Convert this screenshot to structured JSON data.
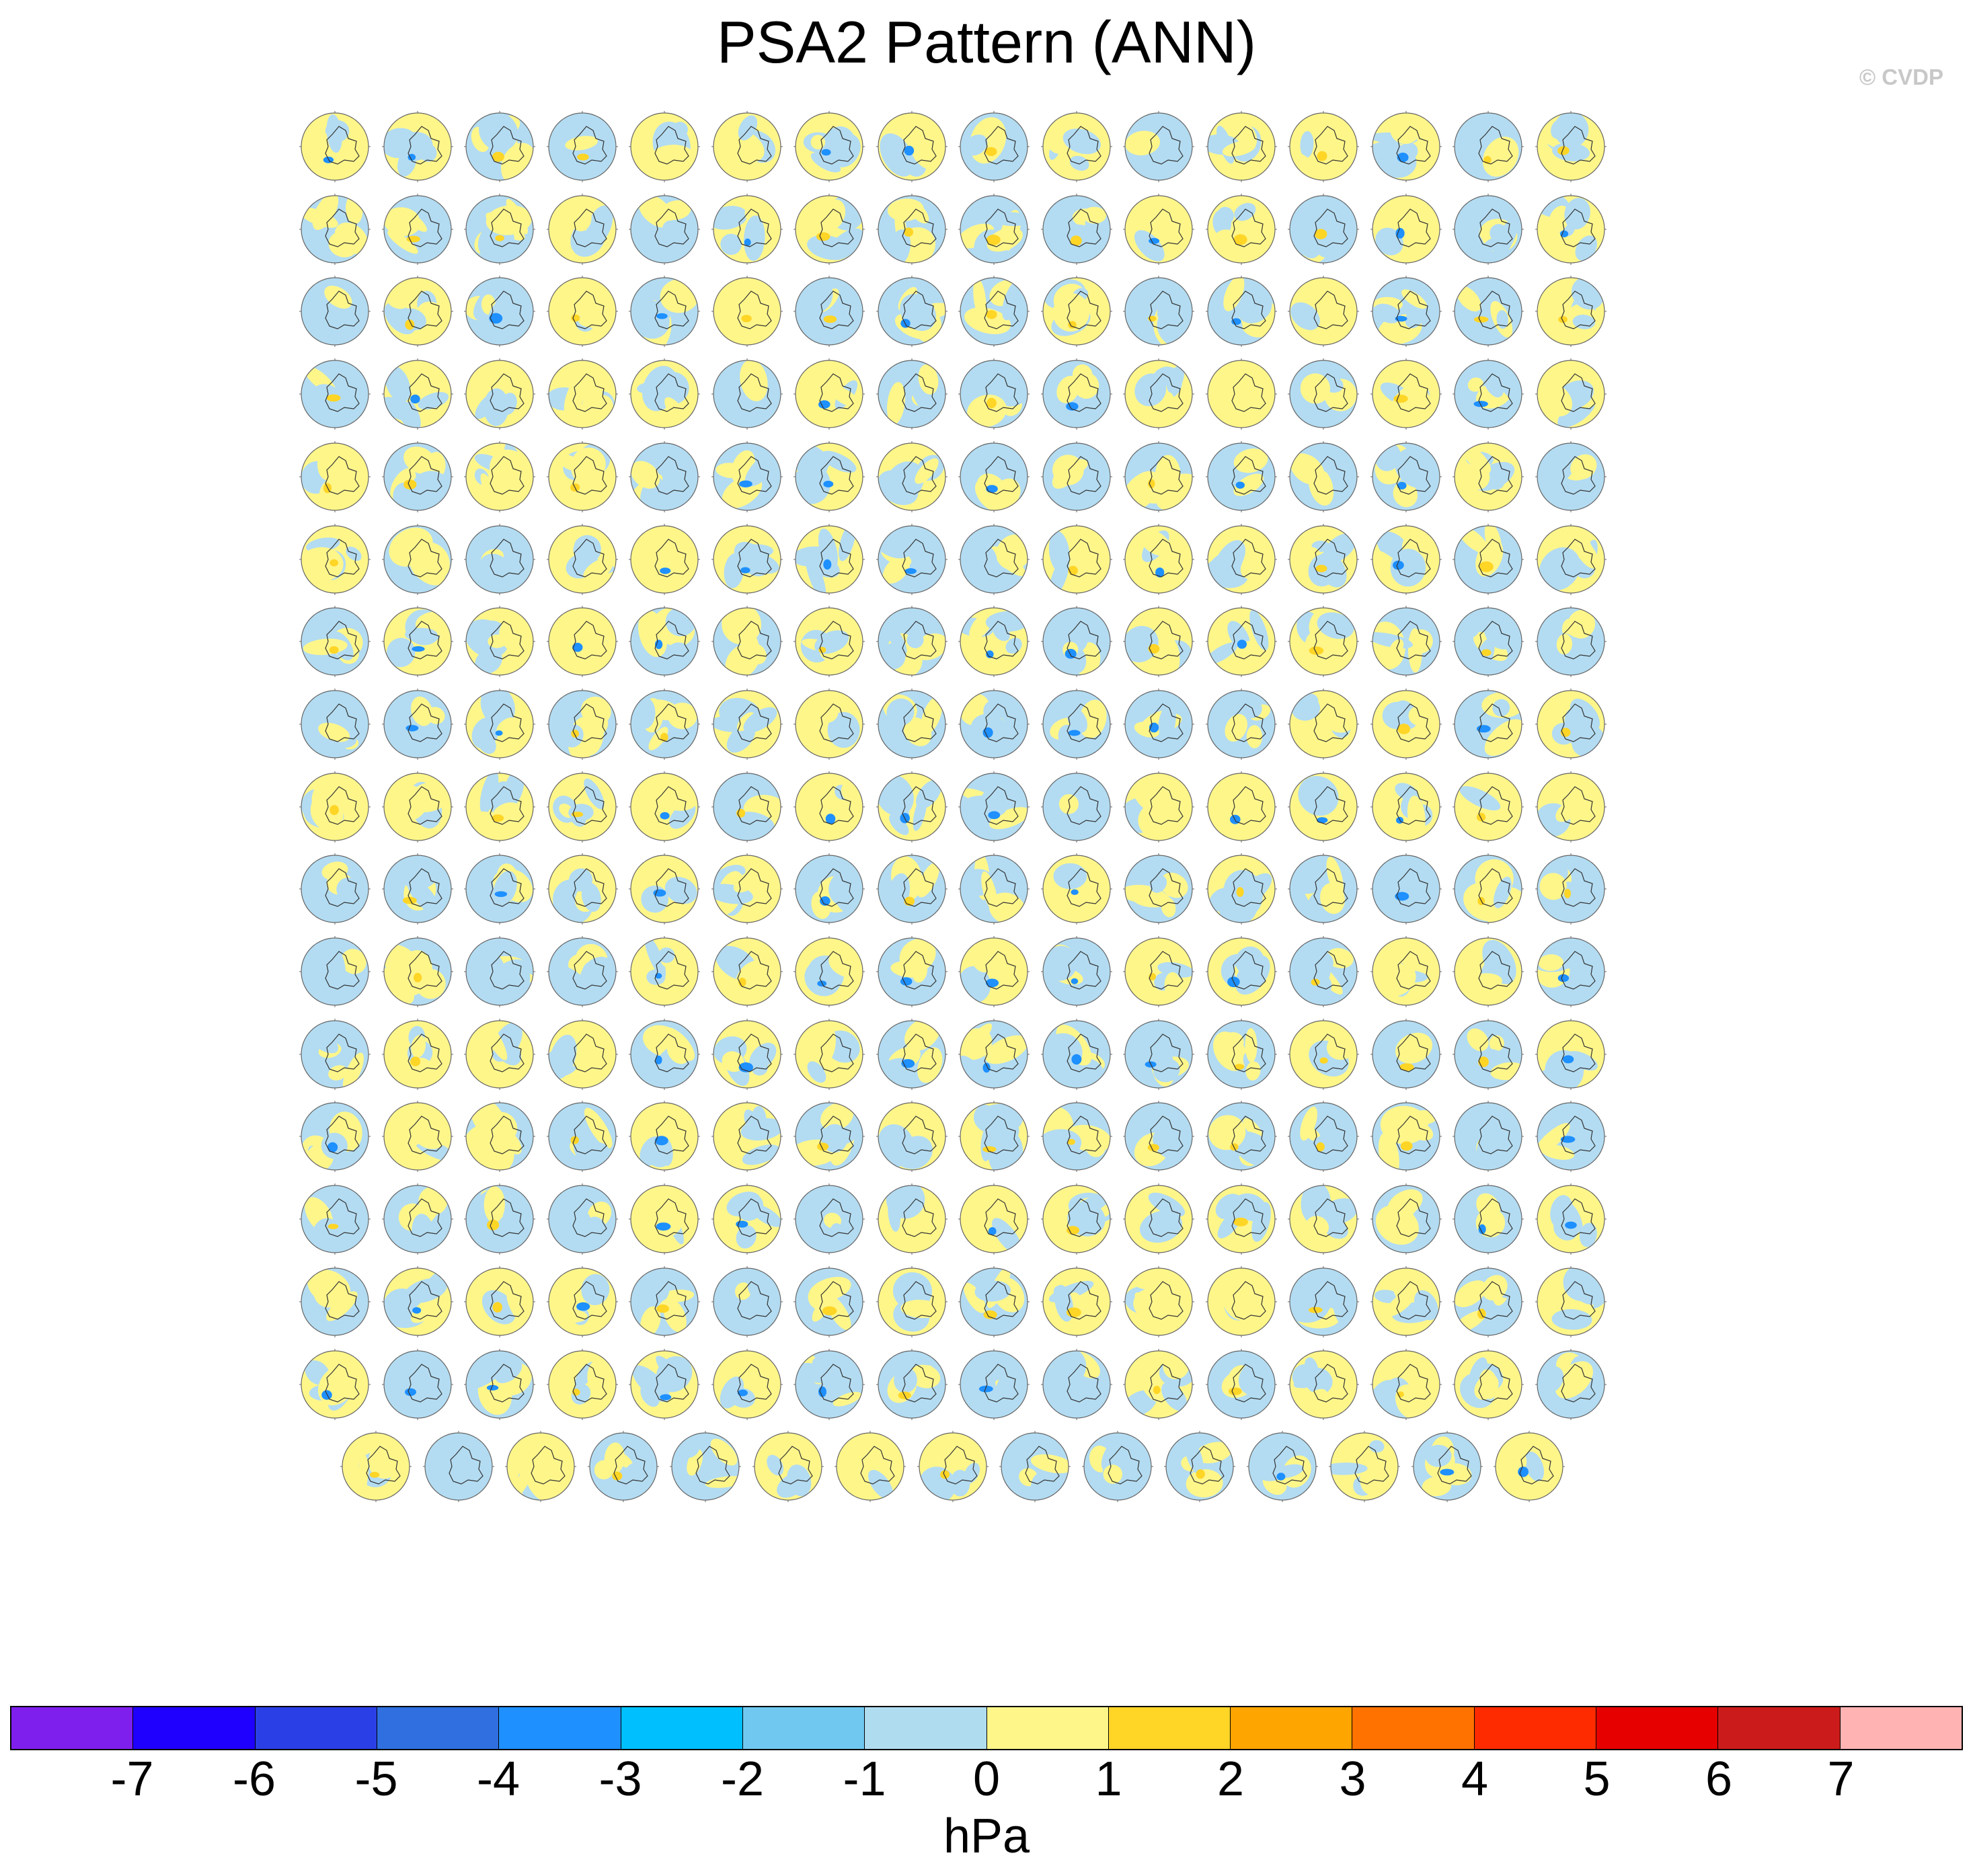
{
  "title": "PSA2 Pattern (ANN)",
  "credit": "© CVDP",
  "colorbar": {
    "colors": [
      "#7f1fee",
      "#1f00ff",
      "#2b3fe6",
      "#2f6fe0",
      "#1e90ff",
      "#00bfff",
      "#70c8f0",
      "#b0dcf0",
      "#fff68a",
      "#ffd526",
      "#ffa500",
      "#ff7200",
      "#ff2b00",
      "#e60000",
      "#cc1b1b",
      "#ffb3b3"
    ],
    "labels": [
      "-7",
      "-6",
      "-5",
      "-4",
      "-3",
      "-2",
      "-1",
      "0",
      "1",
      "2",
      "3",
      "4",
      "5",
      "6",
      "7"
    ],
    "units": "hPa"
  },
  "panels": {
    "rows": 17,
    "cols": 16,
    "last_row_count": 15,
    "palette": {
      "land": "#b3dcf2",
      "pos": "#fff68a",
      "pos2": "#ffd526",
      "neg2": "#70c8f0",
      "neg3": "#1e90ff"
    }
  }
}
